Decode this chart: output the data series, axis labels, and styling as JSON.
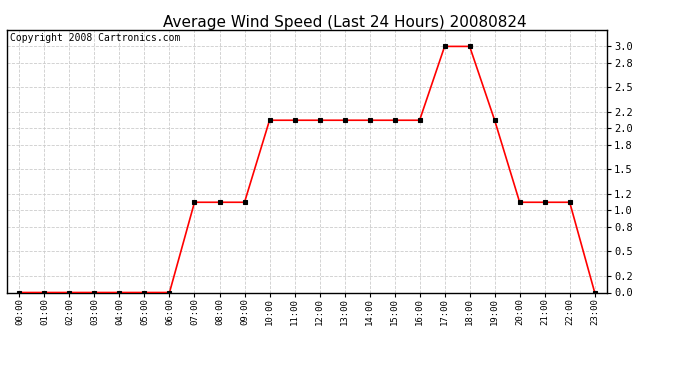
{
  "title": "Average Wind Speed (Last 24 Hours) 20080824",
  "copyright_text": "Copyright 2008 Cartronics.com",
  "x_labels": [
    "00:00",
    "01:00",
    "02:00",
    "03:00",
    "04:00",
    "05:00",
    "06:00",
    "07:00",
    "08:00",
    "09:00",
    "10:00",
    "11:00",
    "12:00",
    "13:00",
    "14:00",
    "15:00",
    "16:00",
    "17:00",
    "18:00",
    "19:00",
    "20:00",
    "21:00",
    "22:00",
    "23:00"
  ],
  "y_values": [
    0.0,
    0.0,
    0.0,
    0.0,
    0.0,
    0.0,
    0.0,
    1.1,
    1.1,
    1.1,
    2.1,
    2.1,
    2.1,
    2.1,
    2.1,
    2.1,
    2.1,
    3.0,
    3.0,
    2.1,
    1.1,
    1.1,
    1.1,
    0.0
  ],
  "line_color": "#ff0000",
  "marker": "s",
  "marker_size": 3,
  "marker_color": "#000000",
  "bg_color": "#ffffff",
  "plot_bg_color": "#ffffff",
  "grid_color": "#cccccc",
  "grid_style": "--",
  "ylim": [
    0.0,
    3.2
  ],
  "yticks": [
    0.0,
    0.2,
    0.5,
    0.8,
    1.0,
    1.2,
    1.5,
    1.8,
    2.0,
    2.2,
    2.5,
    2.8,
    3.0
  ],
  "title_fontsize": 11,
  "copyright_fontsize": 7,
  "border_color": "#000000"
}
